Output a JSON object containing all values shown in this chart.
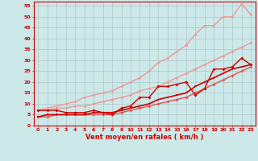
{
  "xlabel": "Vent moyen/en rafales ( km/h )",
  "bg_color": "#cce8e8",
  "grid_color": "#b0c8c8",
  "x": [
    0,
    1,
    2,
    3,
    4,
    5,
    6,
    7,
    8,
    9,
    10,
    11,
    12,
    13,
    14,
    15,
    16,
    17,
    18,
    19,
    20,
    21,
    22,
    23
  ],
  "line_light1": [
    7,
    8,
    9,
    10,
    11,
    13,
    14,
    15,
    16,
    18,
    20,
    22,
    25,
    29,
    31,
    34,
    37,
    42,
    46,
    46,
    50,
    50,
    56,
    51
  ],
  "line_light2": [
    7,
    7,
    8,
    8,
    9,
    9,
    10,
    11,
    12,
    13,
    14,
    16,
    17,
    18,
    20,
    22,
    24,
    26,
    28,
    30,
    32,
    34,
    36,
    38
  ],
  "line_med": [
    4,
    4,
    5,
    5,
    5,
    5,
    5,
    5,
    5,
    6,
    7,
    8,
    9,
    10,
    11,
    12,
    13,
    15,
    17,
    19,
    21,
    23,
    25,
    27
  ],
  "line_dark1": [
    7,
    7,
    7,
    6,
    6,
    6,
    7,
    6,
    5,
    8,
    9,
    13,
    13,
    18,
    18,
    19,
    20,
    14,
    17,
    26,
    26,
    27,
    31,
    28
  ],
  "line_dark2": [
    4,
    5,
    5,
    5,
    5,
    5,
    6,
    6,
    6,
    7,
    8,
    9,
    10,
    12,
    13,
    14,
    15,
    18,
    20,
    22,
    24,
    26,
    27,
    28
  ],
  "color_dark": "#cc0000",
  "color_med": "#dd5555",
  "color_light": "#ee9999",
  "ylim_min": 0,
  "ylim_max": 57,
  "xlim_min": -0.5,
  "xlim_max": 23.5,
  "yticks": [
    0,
    5,
    10,
    15,
    20,
    25,
    30,
    35,
    40,
    45,
    50,
    55
  ],
  "xticks": [
    0,
    1,
    2,
    3,
    4,
    5,
    6,
    7,
    8,
    9,
    10,
    11,
    12,
    13,
    14,
    15,
    16,
    17,
    18,
    19,
    20,
    21,
    22,
    23
  ]
}
